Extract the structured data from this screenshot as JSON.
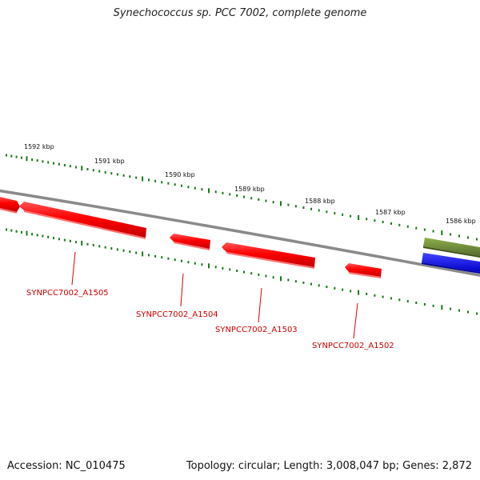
{
  "title": "Synechococcus sp. PCC 7002, complete genome",
  "footer": {
    "accession": "Accession: NC_010475",
    "topology": "Topology: circular; Length: 3,008,047 bp; Genes: 2,872"
  },
  "colors": {
    "gene": "#ff0000",
    "gene_label": "#cc0000",
    "backbone": "#888888",
    "ticks": "#1a7a1a",
    "feature_green": "#6b8e23",
    "feature_blue": "#0000ff"
  },
  "scale_labels": [
    "1592 kbp",
    "1591 kbp",
    "1590 kbp",
    "1589 kbp",
    "1588 kbp",
    "1587 kbp",
    "1586 kbp"
  ],
  "genes": [
    {
      "name": "SYNPCC7002_A1505"
    },
    {
      "name": "SYNPCC7002_A1504"
    },
    {
      "name": "SYNPCC7002_A1503"
    },
    {
      "name": "SYNPCC7002_A1502"
    }
  ]
}
